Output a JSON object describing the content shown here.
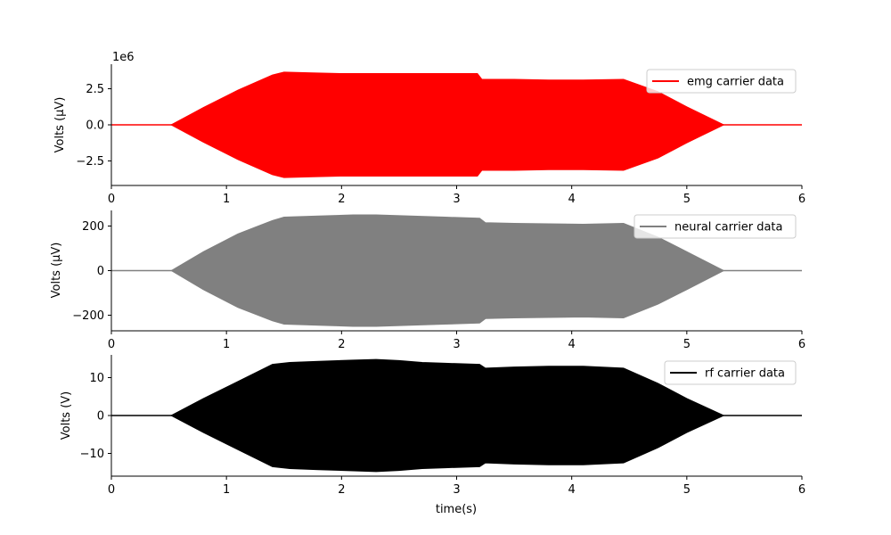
{
  "chart_data": [
    {
      "type": "area",
      "name": "emg",
      "ylabel": "Volts (μV)",
      "xlabel": "",
      "offset_text": "1e6",
      "legend": "emg carrier data",
      "legend_position": "top-right",
      "color": "#ff0000",
      "xlim": [
        0,
        6
      ],
      "ylim": [
        -4200000,
        4200000
      ],
      "xticks": [
        0,
        1,
        2,
        3,
        4,
        5,
        6
      ],
      "xtick_labels": [
        "0",
        "1",
        "2",
        "3",
        "4",
        "5",
        "6"
      ],
      "yticks": [
        2500000,
        0,
        -2500000
      ],
      "ytick_labels": [
        "2.5",
        "0.0",
        "−2.5"
      ],
      "envelope": {
        "x": [
          0,
          0.52,
          0.8,
          1.1,
          1.4,
          1.5,
          1.75,
          2.0,
          2.3,
          2.6,
          2.9,
          3.18,
          3.22,
          3.5,
          3.8,
          4.1,
          4.45,
          4.75,
          5.0,
          5.32,
          6.0
        ],
        "upper": [
          0,
          0,
          1200000,
          2400000,
          3450000,
          3650000,
          3600000,
          3550000,
          3550000,
          3550000,
          3550000,
          3550000,
          3150000,
          3150000,
          3100000,
          3100000,
          3150000,
          2300000,
          1250000,
          0,
          0
        ],
        "lower": [
          0,
          0,
          -1200000,
          -2400000,
          -3450000,
          -3650000,
          -3600000,
          -3550000,
          -3550000,
          -3550000,
          -3550000,
          -3550000,
          -3150000,
          -3150000,
          -3100000,
          -3100000,
          -3150000,
          -2300000,
          -1250000,
          0,
          0
        ]
      }
    },
    {
      "type": "area",
      "name": "neural",
      "ylabel": "Volts (μV)",
      "xlabel": "",
      "offset_text": "",
      "legend": "neural carrier data",
      "legend_position": "top-right",
      "color": "#808080",
      "xlim": [
        0,
        6
      ],
      "ylim": [
        -270,
        270
      ],
      "xticks": [
        0,
        1,
        2,
        3,
        4,
        5,
        6
      ],
      "xtick_labels": [
        "0",
        "1",
        "2",
        "3",
        "4",
        "5",
        "6"
      ],
      "yticks": [
        200,
        0,
        -200
      ],
      "ytick_labels": [
        "200",
        "0",
        "−200"
      ],
      "envelope": {
        "x": [
          0,
          0.52,
          0.8,
          1.1,
          1.4,
          1.5,
          1.8,
          2.1,
          2.3,
          2.6,
          2.9,
          3.2,
          3.25,
          3.5,
          3.8,
          4.1,
          4.45,
          4.75,
          5.0,
          5.32,
          6.0
        ],
        "upper": [
          0,
          0,
          85,
          165,
          225,
          240,
          245,
          250,
          250,
          245,
          240,
          235,
          215,
          212,
          210,
          208,
          212,
          150,
          85,
          0,
          0
        ],
        "lower": [
          0,
          0,
          -85,
          -165,
          -225,
          -240,
          -245,
          -250,
          -250,
          -245,
          -240,
          -235,
          -215,
          -212,
          -210,
          -208,
          -212,
          -150,
          -85,
          0,
          0
        ]
      }
    },
    {
      "type": "area",
      "name": "rf",
      "ylabel": "Volts (V)",
      "xlabel": "time(s)",
      "offset_text": "",
      "legend": "rf carrier data",
      "legend_position": "top-right",
      "color": "#000000",
      "xlim": [
        0,
        6
      ],
      "ylim": [
        -16,
        16
      ],
      "xticks": [
        0,
        1,
        2,
        3,
        4,
        5,
        6
      ],
      "xtick_labels": [
        "0",
        "1",
        "2",
        "3",
        "4",
        "5",
        "6"
      ],
      "yticks": [
        10,
        0,
        -10
      ],
      "ytick_labels": [
        "10",
        "0",
        "−10"
      ],
      "envelope": {
        "x": [
          0,
          0.52,
          0.8,
          1.1,
          1.4,
          1.55,
          1.8,
          2.1,
          2.3,
          2.5,
          2.7,
          2.9,
          3.2,
          3.25,
          3.5,
          3.8,
          4.1,
          4.45,
          4.75,
          5.0,
          5.32,
          6.0
        ],
        "upper": [
          0,
          0,
          4.5,
          9.0,
          13.5,
          14.0,
          14.3,
          14.6,
          14.8,
          14.5,
          14.0,
          13.8,
          13.5,
          12.5,
          12.8,
          13.0,
          13.0,
          12.5,
          8.5,
          4.5,
          0,
          0
        ],
        "lower": [
          0,
          0,
          -4.5,
          -9.0,
          -13.5,
          -14.0,
          -14.3,
          -14.6,
          -14.8,
          -14.5,
          -14.0,
          -13.8,
          -13.5,
          -12.5,
          -12.8,
          -13.0,
          -13.0,
          -12.5,
          -8.5,
          -4.5,
          0,
          0
        ]
      }
    }
  ]
}
